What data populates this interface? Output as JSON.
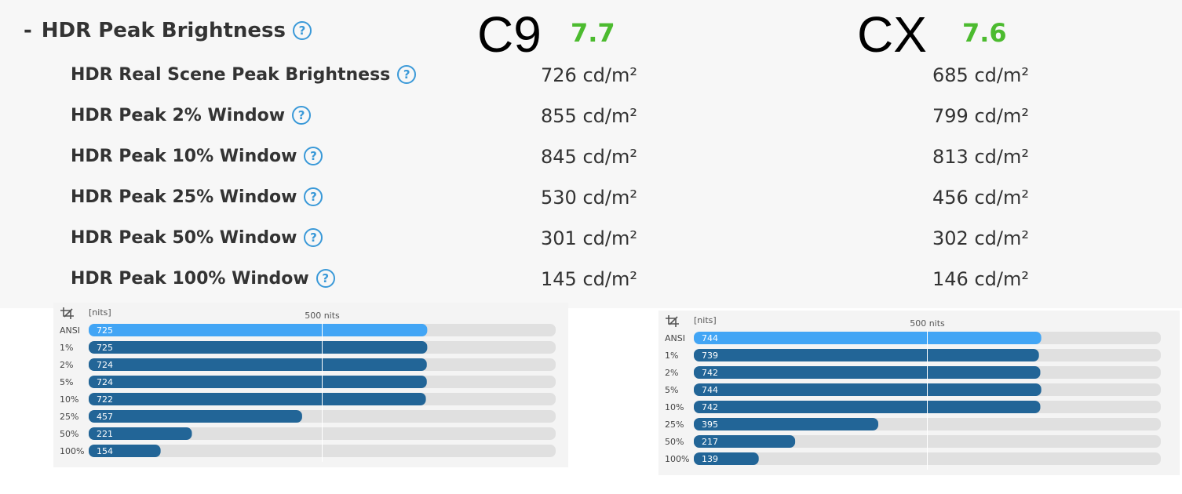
{
  "section": {
    "prefix": "-",
    "title": "HDR Peak Brightness"
  },
  "models": [
    {
      "name": "C9",
      "score": "7.7"
    },
    {
      "name": "CX",
      "score": "7.6"
    }
  ],
  "metrics": [
    {
      "label": "HDR Real Scene Peak Brightness",
      "c9": "726 cd/m²",
      "cx": "685 cd/m²"
    },
    {
      "label": "HDR Peak 2% Window",
      "c9": "855 cd/m²",
      "cx": "799 cd/m²"
    },
    {
      "label": "HDR Peak 10% Window",
      "c9": "845 cd/m²",
      "cx": "813 cd/m²"
    },
    {
      "label": "HDR Peak 25% Window",
      "c9": "530 cd/m²",
      "cx": "456 cd/m²"
    },
    {
      "label": "HDR Peak 50% Window",
      "c9": "301 cd/m²",
      "cx": "302 cd/m²"
    },
    {
      "label": "HDR Peak 100% Window",
      "c9": "145 cd/m²",
      "cx": "146 cd/m²"
    }
  ],
  "colors": {
    "help_icon": "#3a99d8",
    "score": "#4cbb2f",
    "bar_highlight": "#42a5f5",
    "bar": "#226597",
    "track": "#e0e0e0"
  },
  "chart_data": [
    {
      "type": "bar",
      "orientation": "horizontal",
      "ylabel": "[nits]",
      "reference_line": {
        "value": 500,
        "label": "500 nits"
      },
      "xlim": [
        0,
        1000
      ],
      "grid": false,
      "icon": "crop-icon",
      "categories": [
        "ANSI",
        "1%",
        "2%",
        "5%",
        "10%",
        "25%",
        "50%",
        "100%"
      ],
      "values": [
        725,
        725,
        724,
        724,
        722,
        457,
        221,
        154
      ]
    },
    {
      "type": "bar",
      "orientation": "horizontal",
      "ylabel": "[nits]",
      "reference_line": {
        "value": 500,
        "label": "500 nits"
      },
      "xlim": [
        0,
        1000
      ],
      "grid": false,
      "icon": "crop-icon",
      "categories": [
        "ANSI",
        "1%",
        "2%",
        "5%",
        "10%",
        "25%",
        "50%",
        "100%"
      ],
      "values": [
        744,
        739,
        742,
        744,
        742,
        395,
        217,
        139
      ]
    }
  ]
}
